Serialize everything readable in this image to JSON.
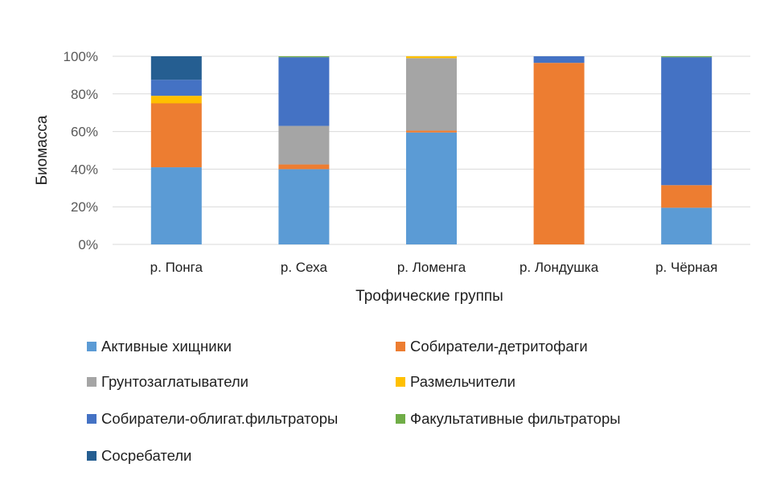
{
  "chart_data": {
    "type": "bar",
    "stacked": true,
    "percent": true,
    "title": "",
    "xlabel": "Трофические группы",
    "ylabel": "Биомасса",
    "ylim": [
      0,
      100
    ],
    "yticks": [
      "0%",
      "20%",
      "40%",
      "60%",
      "80%",
      "100%"
    ],
    "grid": true,
    "legend_position": "bottom",
    "categories": [
      "р. Понга",
      "р. Сеха",
      "р. Ломенга",
      "р. Лондушка",
      "р. Чёрная"
    ],
    "series": [
      {
        "name": "Активные хищники",
        "color": "#5B9BD5",
        "values": [
          41,
          40,
          59.5,
          0,
          19.5
        ]
      },
      {
        "name": "Собиратели-детритофаги",
        "color": "#ED7D31",
        "values": [
          34,
          2.5,
          1,
          96.5,
          12
        ]
      },
      {
        "name": "Грунтозаглатыватели",
        "color": "#A5A5A5",
        "values": [
          0,
          20.5,
          38.5,
          0,
          0
        ]
      },
      {
        "name": "Размельчители",
        "color": "#FFC000",
        "values": [
          4,
          0,
          1,
          0,
          0
        ]
      },
      {
        "name": "Собиратели-облигат.фильтраторы",
        "color": "#4472C4",
        "values": [
          8.5,
          36.5,
          0,
          3.5,
          68
        ]
      },
      {
        "name": "Факультативные фильтраторы",
        "color": "#70AD47",
        "values": [
          0,
          0.5,
          0,
          0,
          0.5
        ]
      },
      {
        "name": "Сосребатели",
        "color": "#255E91",
        "values": [
          12.5,
          0,
          0,
          0,
          0
        ]
      }
    ]
  }
}
